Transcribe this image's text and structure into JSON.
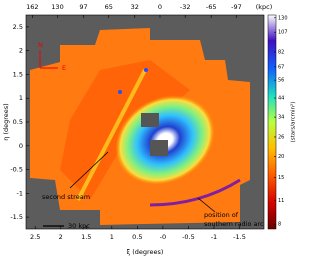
{
  "chart_data": {
    "type": "heatmap",
    "xlabel": "ξ (degrees)",
    "ylabel": "η (degrees)",
    "xlim": [
      2.68,
      -1.98
    ],
    "xticks": [
      2.5,
      2,
      1.5,
      1,
      0.5,
      {
        "value": 0,
        "label": "-0"
      },
      -0.5,
      -1,
      -1.5
    ],
    "ylim": [
      -1.75,
      2.75
    ],
    "yticks": [
      2.5,
      2,
      1.5,
      1,
      0.5,
      0,
      -0.5,
      -1,
      -1.5
    ],
    "x2lim": [
      170,
      -132
    ],
    "x2label": "(kpc)",
    "x2ticks": [
      162,
      130,
      97,
      65,
      32,
      0,
      -32,
      -65,
      -97
    ],
    "colorbar": {
      "label": "(stars/arcmin²)",
      "lim": [
        7.5,
        135
      ],
      "log": true,
      "ticks": [
        130,
        107,
        82,
        67,
        56,
        44,
        34,
        26,
        20,
        15,
        11,
        8
      ]
    },
    "annotations": {
      "stream": "second stream",
      "arc": [
        "position of",
        "southern radio arc"
      ],
      "scale": "30 kpc",
      "north": "N",
      "east": "E"
    }
  }
}
